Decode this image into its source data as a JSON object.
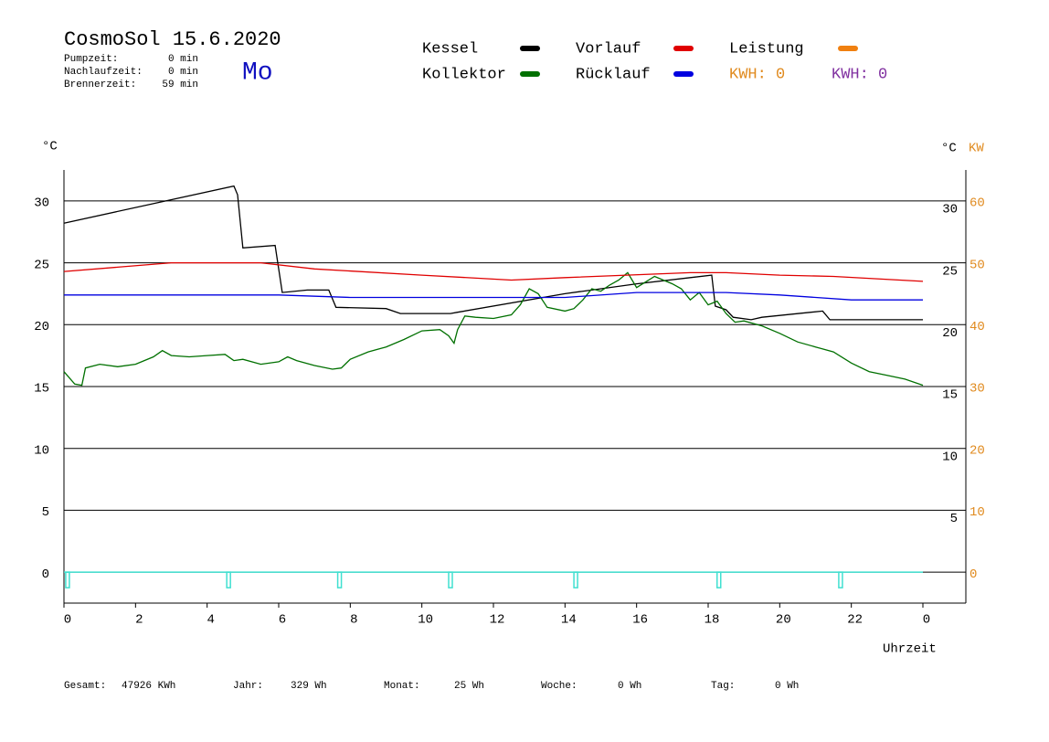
{
  "chart_data": {
    "type": "line",
    "title": "CosmoSol 15.6.2020",
    "weekday": "Mo",
    "info": [
      {
        "label": "Pumpzeit:",
        "value": "0 min"
      },
      {
        "label": "Nachlaufzeit:",
        "value": "0 min"
      },
      {
        "label": "Brennerzeit:",
        "value": "59 min"
      }
    ],
    "y_label": "°C",
    "y_right_label": "°C",
    "y2_label": "KW",
    "x_label": "Uhrzeit",
    "kwh": [
      {
        "text": "KWH: 0",
        "color": "#e08a1e"
      },
      {
        "text": "KWH: 0",
        "color": "#8030a0"
      }
    ],
    "xlim": [
      0,
      25.2
    ],
    "xticks": [
      0,
      2,
      4,
      6,
      8,
      10,
      12,
      14,
      16,
      18,
      20,
      22,
      {
        "value": 24,
        "label": "0"
      }
    ],
    "ylim": [
      -2.5,
      32.5
    ],
    "yticks": [
      0,
      5,
      10,
      15,
      20,
      25,
      30
    ],
    "yticks_right": [
      5,
      10,
      15,
      20,
      25,
      30
    ],
    "y2lim": [
      -5,
      65
    ],
    "y2ticks": [
      0,
      10,
      20,
      30,
      40,
      50,
      60
    ],
    "y2_color": "#e08a1e",
    "grid": true,
    "series": [
      {
        "name": "Kessel",
        "color": "#000000",
        "x": [
          0,
          4.75,
          4.85,
          5.0,
          5.9,
          6.1,
          6.8,
          7.4,
          7.6,
          9.0,
          9.4,
          10.8,
          11,
          14,
          16,
          17.5,
          18.1,
          18.2,
          18.5,
          18.7,
          19.2,
          19.5,
          21.2,
          21.4,
          24
        ],
        "values": [
          28.2,
          31.2,
          30.5,
          26.2,
          26.4,
          22.6,
          22.8,
          22.8,
          21.4,
          21.3,
          20.9,
          20.9,
          21,
          22.5,
          23.3,
          23.8,
          24.0,
          21.5,
          21.2,
          20.6,
          20.4,
          20.6,
          21.1,
          20.4,
          20.4
        ]
      },
      {
        "name": "Kollektor",
        "color": "#007000",
        "x": [
          0,
          0.3,
          0.5,
          0.6,
          1.0,
          1.5,
          2.0,
          2.5,
          2.75,
          3.0,
          3.5,
          4.0,
          4.5,
          4.75,
          5.0,
          5.5,
          6.0,
          6.25,
          6.5,
          7.0,
          7.5,
          7.75,
          8.0,
          8.5,
          9.0,
          9.5,
          10.0,
          10.5,
          10.75,
          10.9,
          11.0,
          11.2,
          11.5,
          12.0,
          12.5,
          12.75,
          13.0,
          13.25,
          13.5,
          14.0,
          14.25,
          14.5,
          14.75,
          15.0,
          15.25,
          15.5,
          15.75,
          16.0,
          16.5,
          17.0,
          17.25,
          17.5,
          17.75,
          18.0,
          18.25,
          18.5,
          18.75,
          19.0,
          19.5,
          20.0,
          20.5,
          21.0,
          21.5,
          22.0,
          22.5,
          23.0,
          23.5,
          24.0
        ],
        "values": [
          16.2,
          15.2,
          15.1,
          16.5,
          16.8,
          16.6,
          16.8,
          17.4,
          17.9,
          17.5,
          17.4,
          17.5,
          17.6,
          17.1,
          17.2,
          16.8,
          17.0,
          17.4,
          17.1,
          16.7,
          16.4,
          16.5,
          17.2,
          17.8,
          18.2,
          18.8,
          19.5,
          19.6,
          19.1,
          18.5,
          19.6,
          20.7,
          20.6,
          20.5,
          20.8,
          21.6,
          22.9,
          22.5,
          21.4,
          21.1,
          21.3,
          22.0,
          22.9,
          22.7,
          23.2,
          23.6,
          24.2,
          23.0,
          23.9,
          23.3,
          22.9,
          22.0,
          22.6,
          21.6,
          21.9,
          20.9,
          20.2,
          20.3,
          19.9,
          19.3,
          18.6,
          18.2,
          17.8,
          16.9,
          16.2,
          15.9,
          15.6,
          15.1
        ]
      },
      {
        "name": "Vorlauf",
        "color": "#e00000",
        "x": [
          0,
          3,
          5.5,
          7,
          10,
          12.5,
          14,
          17.5,
          18.5,
          20,
          21.5,
          24
        ],
        "values": [
          24.3,
          25.0,
          25.0,
          24.5,
          24.0,
          23.6,
          23.8,
          24.2,
          24.2,
          24.0,
          23.9,
          23.5
        ]
      },
      {
        "name": "Rücklauf",
        "color": "#0000e0",
        "x": [
          0,
          6,
          8,
          14,
          16,
          18.5,
          20,
          22,
          24
        ],
        "values": [
          22.4,
          22.4,
          22.2,
          22.2,
          22.6,
          22.6,
          22.4,
          22.0,
          22.0
        ]
      },
      {
        "name": "Leistung",
        "color": "#f08010",
        "axis": "y2",
        "x": [],
        "values": []
      }
    ],
    "pulses": {
      "color": "#40e0d0",
      "x": [
        0.1,
        4.6,
        7.7,
        10.8,
        14.3,
        18.3,
        21.7
      ]
    },
    "footer": [
      {
        "label": "Gesamt:",
        "value": "47926 KWh"
      },
      {
        "label": "Jahr:",
        "value": "329 Wh"
      },
      {
        "label": "Monat:",
        "value": "25 Wh"
      },
      {
        "label": "Woche:",
        "value": "0 Wh"
      },
      {
        "label": "Tag:",
        "value": "0 Wh"
      }
    ]
  }
}
